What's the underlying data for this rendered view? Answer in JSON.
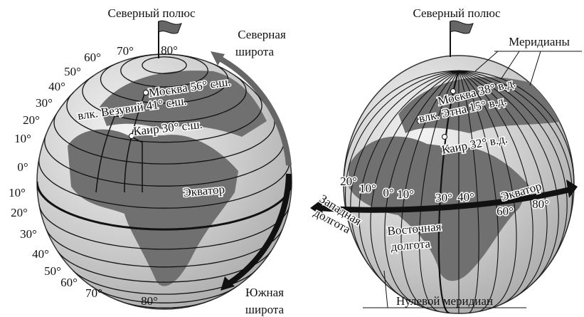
{
  "left_globe": {
    "title": "Северный полюс",
    "north_label": [
      "Северная",
      "широта"
    ],
    "south_label": [
      "Южная",
      "широта"
    ],
    "latitudes_north": [
      "0°",
      "10°",
      "20°",
      "30°",
      "40°",
      "50°",
      "60°",
      "70°",
      "80°"
    ],
    "latitudes_south": [
      "10°",
      "20°",
      "30°",
      "40°",
      "50°",
      "60°",
      "70°",
      "80°"
    ],
    "places": [
      "Москва 56° с.ш.",
      "влк. Везувий 41° с.ш.",
      "Каир 30° с.ш."
    ],
    "equator": "Экватор"
  },
  "right_globe": {
    "title": "Северный полюс",
    "meridians_label": "Меридианы",
    "places": [
      "Москва 38° в.д.",
      "влк. Этна 15° в.д.",
      "Каир 32° в.д."
    ],
    "equator": "Экватор",
    "longitudes_west": [
      "20°",
      "10°"
    ],
    "longitudes_east": [
      "0°",
      "10°",
      "30°",
      "40°",
      "60°",
      "80°"
    ],
    "west_label": [
      "Западная",
      "долгота"
    ],
    "east_label": [
      "Восточная",
      "долгота"
    ],
    "prime_meridian": "Нулевой меридиан"
  }
}
